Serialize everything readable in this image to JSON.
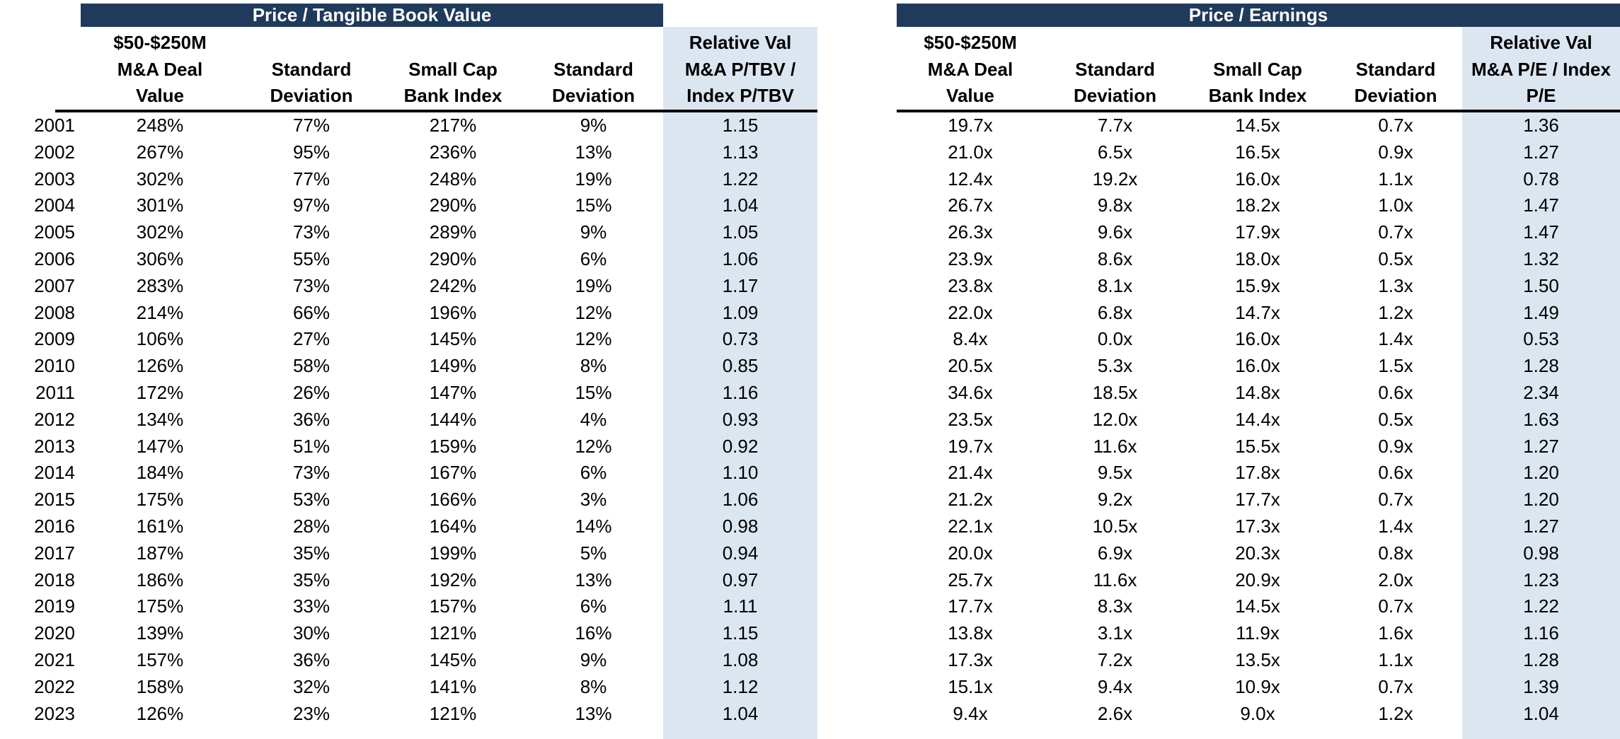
{
  "colors": {
    "title_bar_bg": "#203A5C",
    "title_text": "#FFFFFF",
    "highlight_col_bg": "#DCE6F1",
    "text": "#000000",
    "header_rule": "#000000"
  },
  "years": [
    "2001",
    "2002",
    "2003",
    "2004",
    "2005",
    "2006",
    "2007",
    "2008",
    "2009",
    "2010",
    "2011",
    "2012",
    "2013",
    "2014",
    "2015",
    "2016",
    "2017",
    "2018",
    "2019",
    "2020",
    "2021",
    "2022",
    "2023"
  ],
  "chart_data": [
    {
      "type": "table",
      "title": "Price / Tangible Book Value",
      "columns": [
        "$50-$250M M&A Deal Value",
        "Standard Deviation",
        "Small Cap Bank Index",
        "Standard Deviation",
        "Relative Val M&A P/TBV / Index P/TBV"
      ],
      "header_lines": [
        [
          "$50-$250M",
          "M&A Deal",
          "Value"
        ],
        [
          "",
          "Standard",
          "Deviation"
        ],
        [
          "",
          "Small Cap",
          "Bank Index"
        ],
        [
          "",
          "Standard",
          "Deviation"
        ],
        [
          "Relative Val",
          "M&A P/TBV /",
          "Index P/TBV"
        ]
      ],
      "highlight_column": "Relative Val M&A P/TBV / Index P/TBV",
      "rows": [
        [
          "248%",
          "77%",
          "217%",
          "9%",
          "1.15"
        ],
        [
          "267%",
          "95%",
          "236%",
          "13%",
          "1.13"
        ],
        [
          "302%",
          "77%",
          "248%",
          "19%",
          "1.22"
        ],
        [
          "301%",
          "97%",
          "290%",
          "15%",
          "1.04"
        ],
        [
          "302%",
          "73%",
          "289%",
          "9%",
          "1.05"
        ],
        [
          "306%",
          "55%",
          "290%",
          "6%",
          "1.06"
        ],
        [
          "283%",
          "73%",
          "242%",
          "19%",
          "1.17"
        ],
        [
          "214%",
          "66%",
          "196%",
          "12%",
          "1.09"
        ],
        [
          "106%",
          "27%",
          "145%",
          "12%",
          "0.73"
        ],
        [
          "126%",
          "58%",
          "149%",
          "8%",
          "0.85"
        ],
        [
          "172%",
          "26%",
          "147%",
          "15%",
          "1.16"
        ],
        [
          "134%",
          "36%",
          "144%",
          "4%",
          "0.93"
        ],
        [
          "147%",
          "51%",
          "159%",
          "12%",
          "0.92"
        ],
        [
          "184%",
          "73%",
          "167%",
          "6%",
          "1.10"
        ],
        [
          "175%",
          "53%",
          "166%",
          "3%",
          "1.06"
        ],
        [
          "161%",
          "28%",
          "164%",
          "14%",
          "0.98"
        ],
        [
          "187%",
          "35%",
          "199%",
          "5%",
          "0.94"
        ],
        [
          "186%",
          "35%",
          "192%",
          "13%",
          "0.97"
        ],
        [
          "175%",
          "33%",
          "157%",
          "6%",
          "1.11"
        ],
        [
          "139%",
          "30%",
          "121%",
          "16%",
          "1.15"
        ],
        [
          "157%",
          "36%",
          "145%",
          "9%",
          "1.08"
        ],
        [
          "158%",
          "32%",
          "141%",
          "8%",
          "1.12"
        ],
        [
          "126%",
          "23%",
          "121%",
          "13%",
          "1.04"
        ]
      ]
    },
    {
      "type": "table",
      "title": "Price / Earnings",
      "columns": [
        "$50-$250M M&A Deal Value",
        "Standard Deviation",
        "Small Cap Bank Index",
        "Standard Deviation",
        "Relative Val M&A P/E / Index P/E"
      ],
      "header_lines": [
        [
          "$50-$250M",
          "M&A Deal",
          "Value"
        ],
        [
          "",
          "Standard",
          "Deviation"
        ],
        [
          "",
          "Small Cap",
          "Bank Index"
        ],
        [
          "",
          "Standard",
          "Deviation"
        ],
        [
          "Relative Val",
          "M&A P/E / Index",
          "P/E"
        ]
      ],
      "highlight_column": "Relative Val M&A P/E / Index P/E",
      "rows": [
        [
          "19.7x",
          "7.7x",
          "14.5x",
          "0.7x",
          "1.36"
        ],
        [
          "21.0x",
          "6.5x",
          "16.5x",
          "0.9x",
          "1.27"
        ],
        [
          "12.4x",
          "19.2x",
          "16.0x",
          "1.1x",
          "0.78"
        ],
        [
          "26.7x",
          "9.8x",
          "18.2x",
          "1.0x",
          "1.47"
        ],
        [
          "26.3x",
          "9.6x",
          "17.9x",
          "0.7x",
          "1.47"
        ],
        [
          "23.9x",
          "8.6x",
          "18.0x",
          "0.5x",
          "1.32"
        ],
        [
          "23.8x",
          "8.1x",
          "15.9x",
          "1.3x",
          "1.50"
        ],
        [
          "22.0x",
          "6.8x",
          "14.7x",
          "1.2x",
          "1.49"
        ],
        [
          "8.4x",
          "0.0x",
          "16.0x",
          "1.4x",
          "0.53"
        ],
        [
          "20.5x",
          "5.3x",
          "16.0x",
          "1.5x",
          "1.28"
        ],
        [
          "34.6x",
          "18.5x",
          "14.8x",
          "0.6x",
          "2.34"
        ],
        [
          "23.5x",
          "12.0x",
          "14.4x",
          "0.5x",
          "1.63"
        ],
        [
          "19.7x",
          "11.6x",
          "15.5x",
          "0.9x",
          "1.27"
        ],
        [
          "21.4x",
          "9.5x",
          "17.8x",
          "0.6x",
          "1.20"
        ],
        [
          "21.2x",
          "9.2x",
          "17.7x",
          "0.7x",
          "1.20"
        ],
        [
          "22.1x",
          "10.5x",
          "17.3x",
          "1.4x",
          "1.27"
        ],
        [
          "20.0x",
          "6.9x",
          "20.3x",
          "0.8x",
          "0.98"
        ],
        [
          "25.7x",
          "11.6x",
          "20.9x",
          "2.0x",
          "1.23"
        ],
        [
          "17.7x",
          "8.3x",
          "14.5x",
          "0.7x",
          "1.22"
        ],
        [
          "13.8x",
          "3.1x",
          "11.9x",
          "1.6x",
          "1.16"
        ],
        [
          "17.3x",
          "7.2x",
          "13.5x",
          "1.1x",
          "1.28"
        ],
        [
          "15.1x",
          "9.4x",
          "10.9x",
          "0.7x",
          "1.39"
        ],
        [
          "9.4x",
          "2.6x",
          "9.0x",
          "1.2x",
          "1.04"
        ]
      ]
    }
  ]
}
